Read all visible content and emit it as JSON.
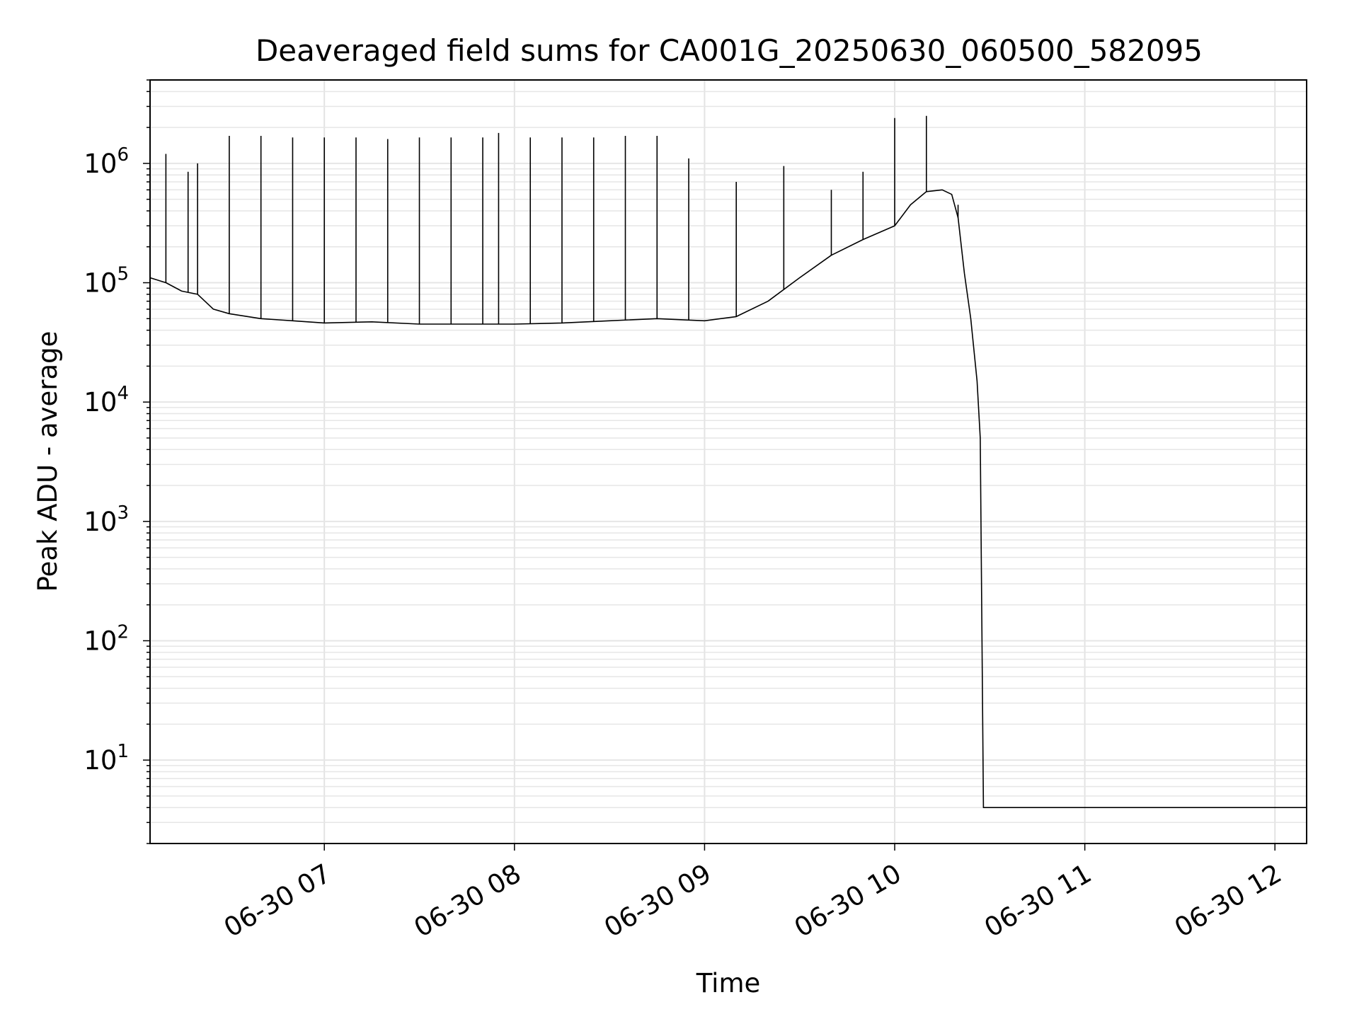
{
  "chart_data": {
    "type": "line",
    "title": "Deaveraged field sums for CA001G_20250630_060500_582095",
    "xlabel": "Time",
    "ylabel": "Peak ADU - average",
    "x_axis_type": "datetime",
    "xlim": [
      "2025-06-30 06:05",
      "2025-06-30 12:10"
    ],
    "ylim": [
      2,
      5000000
    ],
    "y_scale": "log",
    "grid": true,
    "x_ticks": [
      {
        "value": "2025-06-30 07:00",
        "label": "06-30 07"
      },
      {
        "value": "2025-06-30 08:00",
        "label": "06-30 08"
      },
      {
        "value": "2025-06-30 09:00",
        "label": "06-30 09"
      },
      {
        "value": "2025-06-30 10:00",
        "label": "06-30 10"
      },
      {
        "value": "2025-06-30 11:00",
        "label": "06-30 11"
      },
      {
        "value": "2025-06-30 12:00",
        "label": "06-30 12"
      }
    ],
    "y_ticks": [
      {
        "value": 10,
        "base": "10",
        "exp": "1"
      },
      {
        "value": 100,
        "base": "10",
        "exp": "2"
      },
      {
        "value": 1000,
        "base": "10",
        "exp": "3"
      },
      {
        "value": 10000,
        "base": "10",
        "exp": "4"
      },
      {
        "value": 100000,
        "base": "10",
        "exp": "5"
      },
      {
        "value": 1000000,
        "base": "10",
        "exp": "6"
      }
    ],
    "series": [
      {
        "color": "#000000",
        "x": [
          "2025-06-30 06:05",
          "2025-06-30 06:10",
          "2025-06-30 06:15",
          "2025-06-30 06:20",
          "2025-06-30 06:25",
          "2025-06-30 06:30",
          "2025-06-30 06:40",
          "2025-06-30 06:50",
          "2025-06-30 07:00",
          "2025-06-30 07:15",
          "2025-06-30 07:30",
          "2025-06-30 07:45",
          "2025-06-30 08:00",
          "2025-06-30 08:15",
          "2025-06-30 08:30",
          "2025-06-30 08:45",
          "2025-06-30 09:00",
          "2025-06-30 09:10",
          "2025-06-30 09:20",
          "2025-06-30 09:30",
          "2025-06-30 09:40",
          "2025-06-30 09:50",
          "2025-06-30 10:00",
          "2025-06-30 10:05",
          "2025-06-30 10:10",
          "2025-06-30 10:15",
          "2025-06-30 10:18",
          "2025-06-30 10:20",
          "2025-06-30 10:22",
          "2025-06-30 10:24",
          "2025-06-30 10:26",
          "2025-06-30 10:27",
          "2025-06-30 10:28",
          "2025-06-30 10:35",
          "2025-06-30 10:45",
          "2025-06-30 11:00",
          "2025-06-30 11:15",
          "2025-06-30 11:30",
          "2025-06-30 11:45",
          "2025-06-30 12:00",
          "2025-06-30 12:10"
        ],
        "y": [
          110000,
          100000,
          85000,
          80000,
          60000,
          55000,
          50000,
          48000,
          46000,
          47000,
          45000,
          45000,
          45000,
          46000,
          48000,
          50000,
          48000,
          52000,
          70000,
          110000,
          170000,
          230000,
          300000,
          450000,
          580000,
          600000,
          550000,
          350000,
          120000,
          50000,
          15000,
          5000,
          4,
          4,
          4,
          4,
          4,
          4,
          4,
          4,
          4
        ],
        "spikes": [
          {
            "x": "2025-06-30 06:10",
            "y": 1200000
          },
          {
            "x": "2025-06-30 06:17",
            "y": 850000
          },
          {
            "x": "2025-06-30 06:20",
            "y": 1000000
          },
          {
            "x": "2025-06-30 06:30",
            "y": 1700000
          },
          {
            "x": "2025-06-30 06:40",
            "y": 1700000
          },
          {
            "x": "2025-06-30 06:50",
            "y": 1650000
          },
          {
            "x": "2025-06-30 07:00",
            "y": 1650000
          },
          {
            "x": "2025-06-30 07:10",
            "y": 1650000
          },
          {
            "x": "2025-06-30 07:20",
            "y": 1600000
          },
          {
            "x": "2025-06-30 07:30",
            "y": 1650000
          },
          {
            "x": "2025-06-30 07:40",
            "y": 1650000
          },
          {
            "x": "2025-06-30 07:50",
            "y": 1650000
          },
          {
            "x": "2025-06-30 07:55",
            "y": 1800000
          },
          {
            "x": "2025-06-30 08:05",
            "y": 1650000
          },
          {
            "x": "2025-06-30 08:15",
            "y": 1650000
          },
          {
            "x": "2025-06-30 08:25",
            "y": 1650000
          },
          {
            "x": "2025-06-30 08:35",
            "y": 1700000
          },
          {
            "x": "2025-06-30 08:45",
            "y": 1700000
          },
          {
            "x": "2025-06-30 08:55",
            "y": 1100000
          },
          {
            "x": "2025-06-30 09:10",
            "y": 700000
          },
          {
            "x": "2025-06-30 09:25",
            "y": 950000
          },
          {
            "x": "2025-06-30 09:40",
            "y": 600000
          },
          {
            "x": "2025-06-30 09:50",
            "y": 850000
          },
          {
            "x": "2025-06-30 10:00",
            "y": 2400000
          },
          {
            "x": "2025-06-30 10:10",
            "y": 2500000
          },
          {
            "x": "2025-06-30 10:20",
            "y": 450000
          }
        ]
      }
    ]
  }
}
